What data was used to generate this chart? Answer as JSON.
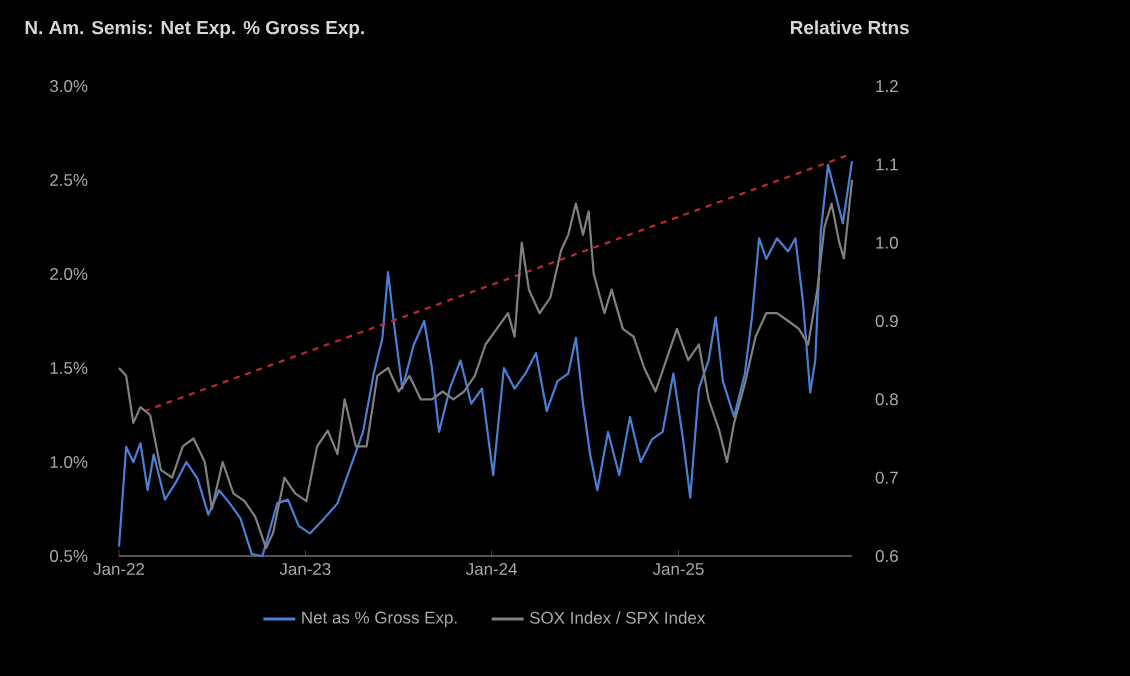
{
  "chart_data": {
    "type": "line",
    "ylabel": "N. Am. Semis: Net Exp. % Gross Exp.",
    "y2label": "Relative Rtns",
    "xlim": [
      "2022-01-01",
      "2025-12-07"
    ],
    "xticks": [
      {
        "value": "2022-01-01",
        "label": "Jan-22"
      },
      {
        "value": "2023-01-01",
        "label": "Jan-23"
      },
      {
        "value": "2024-01-01",
        "label": "Jan-24"
      },
      {
        "value": "2025-01-01",
        "label": "Jan-25"
      }
    ],
    "ylim": [
      0.5,
      3.0
    ],
    "yticks": [
      {
        "value": 0.5,
        "label": "0.5%"
      },
      {
        "value": 1.0,
        "label": "1.0%"
      },
      {
        "value": 1.5,
        "label": "1.5%"
      },
      {
        "value": 2.0,
        "label": "2.0%"
      },
      {
        "value": 2.5,
        "label": "2.5%"
      },
      {
        "value": 3.0,
        "label": "3.0%"
      }
    ],
    "y2lim": [
      0.6,
      1.2
    ],
    "y2ticks": [
      {
        "value": 0.6,
        "label": "0.6"
      },
      {
        "value": 0.7,
        "label": "0.7"
      },
      {
        "value": 0.8,
        "label": "0.8"
      },
      {
        "value": 0.9,
        "label": "0.9"
      },
      {
        "value": 1.0,
        "label": "1.0"
      },
      {
        "value": 1.1,
        "label": "1.1"
      },
      {
        "value": 1.2,
        "label": "1.2"
      }
    ],
    "legend": "bottom",
    "marker": "none",
    "series": [
      {
        "name": "Net as % Gross Exp.",
        "color": "#4a7fd4",
        "x": [
          "2022-01-01",
          "2022-01-15",
          "2022-01-29",
          "2022-02-12",
          "2022-02-26",
          "2022-03-10",
          "2022-04-01",
          "2022-04-22",
          "2022-05-13",
          "2022-06-04",
          "2022-06-25",
          "2022-07-16",
          "2022-08-06",
          "2022-08-27",
          "2022-09-18",
          "2022-10-09",
          "2022-11-07",
          "2022-11-28",
          "2022-12-19",
          "2023-01-10",
          "2023-02-07",
          "2023-03-05",
          "2023-04-03",
          "2023-04-24",
          "2023-05-15",
          "2023-06-01",
          "2023-06-12",
          "2023-06-24",
          "2023-07-10",
          "2023-08-01",
          "2023-08-22",
          "2023-09-06",
          "2023-09-20",
          "2023-10-11",
          "2023-11-01",
          "2023-11-22",
          "2023-12-13",
          "2024-01-04",
          "2024-01-25",
          "2024-02-15",
          "2024-03-07",
          "2024-03-28",
          "2024-04-18",
          "2024-05-09",
          "2024-05-30",
          "2024-06-14",
          "2024-06-28",
          "2024-07-12",
          "2024-07-26",
          "2024-08-16",
          "2024-09-07",
          "2024-09-28",
          "2024-10-19",
          "2024-11-10",
          "2024-12-01",
          "2024-12-22",
          "2025-01-10",
          "2025-01-24",
          "2025-02-10",
          "2025-03-01",
          "2025-03-15",
          "2025-03-29",
          "2025-04-20",
          "2025-05-11",
          "2025-05-25",
          "2025-06-08",
          "2025-06-22",
          "2025-07-13",
          "2025-08-04",
          "2025-08-18",
          "2025-09-02",
          "2025-09-16",
          "2025-09-26",
          "2025-10-07",
          "2025-10-21",
          "2025-11-05",
          "2025-11-19",
          "2025-12-07"
        ],
        "values": [
          0.55,
          1.08,
          1.0,
          1.1,
          0.85,
          1.04,
          0.8,
          0.89,
          1.0,
          0.91,
          0.72,
          0.85,
          0.78,
          0.7,
          0.51,
          0.5,
          0.78,
          0.8,
          0.66,
          0.62,
          0.7,
          0.78,
          1.0,
          1.16,
          1.47,
          1.66,
          2.01,
          1.73,
          1.39,
          1.62,
          1.75,
          1.5,
          1.16,
          1.39,
          1.54,
          1.31,
          1.39,
          0.93,
          1.5,
          1.39,
          1.47,
          1.58,
          1.27,
          1.43,
          1.47,
          1.66,
          1.31,
          1.04,
          0.85,
          1.16,
          0.93,
          1.24,
          1.0,
          1.12,
          1.16,
          1.47,
          1.12,
          0.81,
          1.39,
          1.54,
          1.77,
          1.43,
          1.24,
          1.47,
          1.77,
          2.19,
          2.08,
          2.19,
          2.12,
          2.19,
          1.85,
          1.37,
          1.54,
          2.23,
          2.58,
          2.42,
          2.27,
          2.6
        ]
      },
      {
        "name": "SOX Index / SPX Index",
        "color": "#808080",
        "axis": "y2",
        "x": [
          "2022-01-01",
          "2022-01-15",
          "2022-01-29",
          "2022-02-12",
          "2022-03-03",
          "2022-03-24",
          "2022-04-15",
          "2022-05-06",
          "2022-05-27",
          "2022-06-18",
          "2022-07-02",
          "2022-07-23",
          "2022-08-13",
          "2022-09-04",
          "2022-09-25",
          "2022-10-16",
          "2022-10-30",
          "2022-11-21",
          "2022-12-12",
          "2023-01-03",
          "2023-01-24",
          "2023-02-14",
          "2023-03-05",
          "2023-03-19",
          "2023-04-10",
          "2023-05-01",
          "2023-05-22",
          "2023-06-12",
          "2023-07-03",
          "2023-07-24",
          "2023-08-15",
          "2023-09-06",
          "2023-09-27",
          "2023-10-18",
          "2023-11-08",
          "2023-11-29",
          "2023-12-20",
          "2024-01-11",
          "2024-02-02",
          "2024-02-15",
          "2024-02-29",
          "2024-03-14",
          "2024-04-04",
          "2024-04-25",
          "2024-05-16",
          "2024-05-30",
          "2024-06-14",
          "2024-06-28",
          "2024-07-09",
          "2024-07-19",
          "2024-08-09",
          "2024-08-23",
          "2024-09-14",
          "2024-10-05",
          "2024-10-26",
          "2024-11-17",
          "2024-12-08",
          "2024-12-29",
          "2025-01-20",
          "2025-02-10",
          "2025-03-01",
          "2025-03-22",
          "2025-04-06",
          "2025-04-20",
          "2025-05-11",
          "2025-06-01",
          "2025-06-22",
          "2025-07-13",
          "2025-08-04",
          "2025-08-25",
          "2025-09-12",
          "2025-09-30",
          "2025-10-14",
          "2025-10-28",
          "2025-11-12",
          "2025-11-21",
          "2025-12-07"
        ],
        "values": [
          0.84,
          0.83,
          0.77,
          0.79,
          0.78,
          0.71,
          0.7,
          0.74,
          0.75,
          0.72,
          0.66,
          0.72,
          0.68,
          0.67,
          0.65,
          0.61,
          0.63,
          0.7,
          0.68,
          0.67,
          0.74,
          0.76,
          0.73,
          0.8,
          0.74,
          0.74,
          0.83,
          0.84,
          0.81,
          0.83,
          0.8,
          0.8,
          0.81,
          0.8,
          0.81,
          0.83,
          0.87,
          0.89,
          0.91,
          0.88,
          1.0,
          0.94,
          0.91,
          0.93,
          0.99,
          1.01,
          1.05,
          1.01,
          1.04,
          0.96,
          0.91,
          0.94,
          0.89,
          0.88,
          0.84,
          0.81,
          0.85,
          0.89,
          0.85,
          0.87,
          0.8,
          0.76,
          0.72,
          0.77,
          0.82,
          0.88,
          0.91,
          0.91,
          0.9,
          0.89,
          0.87,
          0.94,
          1.02,
          1.05,
          1.0,
          0.98,
          1.08
        ]
      },
      {
        "type": "line",
        "color": "#c0282d",
        "line_style": "dashed",
        "x": [
          "2022-02-19",
          "2025-12-07"
        ],
        "values": [
          1.27,
          2.64
        ]
      }
    ]
  }
}
